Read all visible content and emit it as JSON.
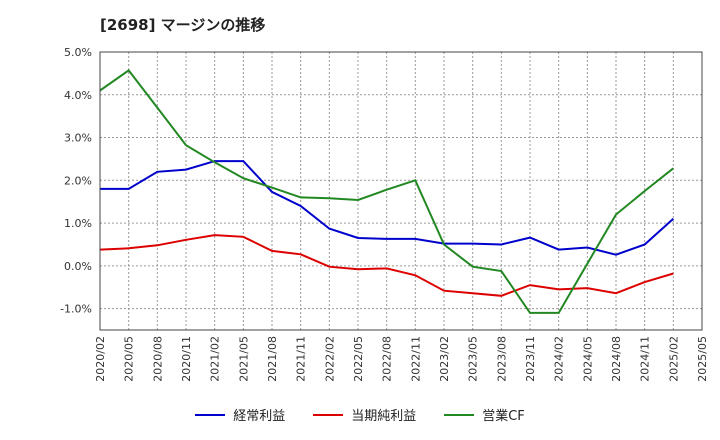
{
  "chart_data": {
    "type": "line",
    "title": "[2698]  マージンの推移",
    "categories": [
      "2020/02",
      "2020/05",
      "2020/08",
      "2020/11",
      "2021/02",
      "2021/05",
      "2021/08",
      "2021/11",
      "2022/02",
      "2022/05",
      "2022/08",
      "2022/11",
      "2023/02",
      "2023/05",
      "2023/08",
      "2023/11",
      "2024/02",
      "2024/05",
      "2024/08",
      "2024/11",
      "2025/02",
      "2025/05"
    ],
    "y_ticks": [
      "5.0%",
      "4.0%",
      "3.0%",
      "2.0%",
      "1.0%",
      "0.0%",
      "-1.0%"
    ],
    "ylim": [
      -1.5,
      5.0
    ],
    "y_unit": "%",
    "grid": true,
    "legend_position": "bottom",
    "series": [
      {
        "name": "経常利益",
        "color": "#0000cc",
        "values": [
          1.8,
          1.8,
          2.2,
          2.25,
          2.45,
          2.45,
          1.73,
          1.4,
          0.87,
          0.65,
          0.63,
          0.63,
          0.52,
          0.52,
          0.5,
          0.66,
          0.38,
          0.43,
          0.26,
          0.5,
          1.1,
          null
        ]
      },
      {
        "name": "当期純利益",
        "color": "#dd0000",
        "values": [
          0.38,
          0.41,
          0.48,
          0.61,
          0.72,
          0.68,
          0.35,
          0.27,
          -0.02,
          -0.08,
          -0.06,
          -0.22,
          -0.58,
          -0.64,
          -0.7,
          -0.45,
          -0.55,
          -0.52,
          -0.64,
          -0.38,
          -0.18,
          null
        ]
      },
      {
        "name": "営業CF",
        "color": "#228822",
        "values": [
          4.1,
          4.57,
          3.7,
          2.82,
          2.42,
          2.05,
          1.83,
          1.6,
          1.58,
          1.54,
          1.78,
          2.0,
          0.5,
          -0.02,
          -0.12,
          -1.1,
          -1.1,
          0.05,
          1.2,
          1.75,
          2.28,
          null
        ]
      }
    ]
  }
}
